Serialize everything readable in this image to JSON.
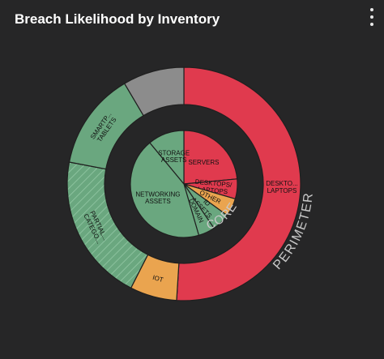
{
  "header": {
    "title": "Breach Likelihood by Inventory",
    "menu_icon": "more-vertical-icon"
  },
  "chart_data": {
    "type": "pie",
    "title": "Breach Likelihood by Inventory",
    "rings": [
      {
        "name": "PERIMETER",
        "segments": [
          {
            "label": "DESKTO... LAPTOPS",
            "value": 51.0,
            "color": "#e03a4e"
          },
          {
            "label": "IOT",
            "value": 6.5,
            "color": "#eaa44f"
          },
          {
            "label": "PARTIAL... CATEGO...",
            "value": 20.5,
            "color": "#6aa77f",
            "hatched": true
          },
          {
            "label": "SMARTP... TABLETS",
            "value": 13.5,
            "color": "#6aa77f"
          },
          {
            "label": "",
            "value": 8.5,
            "color": "#8c8c8c"
          }
        ]
      },
      {
        "name": "CORE",
        "segments": [
          {
            "label": "SERVERS",
            "value": 23.5,
            "color": "#e03a4e"
          },
          {
            "label": "DESKTOPS/ LAPTOPS",
            "value": 6.0,
            "color": "#e03a4e"
          },
          {
            "label": "OTHER",
            "value": 5.5,
            "color": "#eaa44f"
          },
          {
            "label": "ID ASSETS",
            "value": 5.5,
            "color": "#6aa77f"
          },
          {
            "label": "DOMAIN",
            "value": 5.0,
            "color": "#6aa77f"
          },
          {
            "label": "NETWORKING ASSETS",
            "value": 43.5,
            "color": "#6aa77f"
          },
          {
            "label": "STORAGE ASSETS",
            "value": 11.0,
            "color": "#6aa77f"
          }
        ]
      }
    ]
  }
}
